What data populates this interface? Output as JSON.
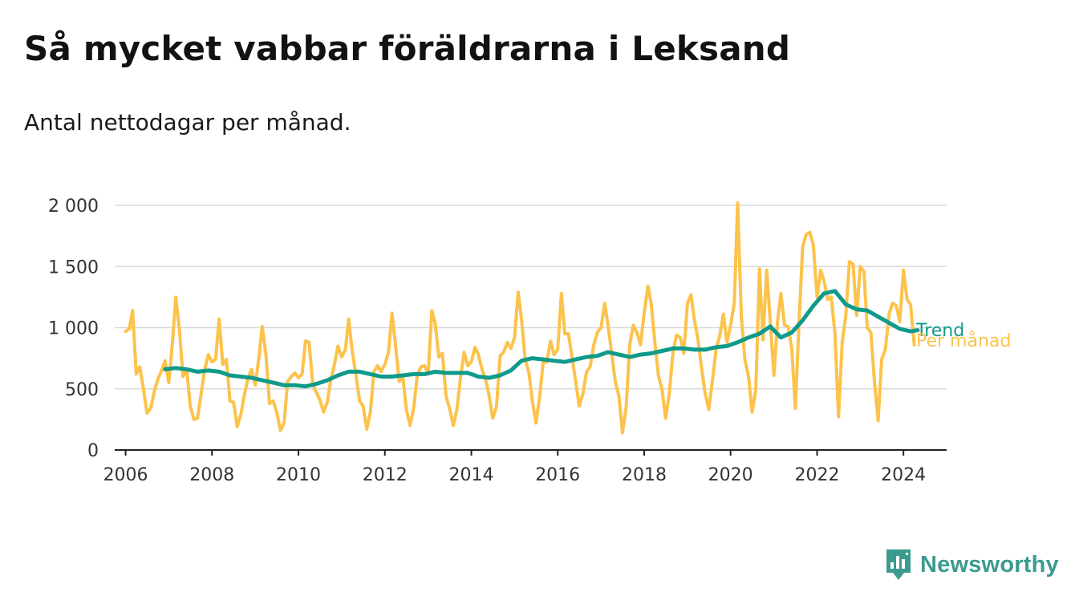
{
  "title": "Så mycket vabbar föräldrarna i Leksand",
  "subtitle": "Antal nettodagar per månad.",
  "brand": {
    "name": "Newsworthy",
    "icon": "newsworthy-logo-icon",
    "color": "#3c9a8f"
  },
  "colors": {
    "monthly": "#fcc34c",
    "trend": "#109a8a",
    "grid": "#d9d9d9",
    "axis": "#222222"
  },
  "chart_data": {
    "type": "line",
    "x_axis": {
      "type": "date",
      "range": [
        "2005-10-01",
        "2024-12-31"
      ],
      "ticks": [
        "2006",
        "2008",
        "2010",
        "2012",
        "2014",
        "2016",
        "2018",
        "2020",
        "2022",
        "2024"
      ]
    },
    "y_axis": {
      "range": [
        0,
        2050
      ],
      "ticks": [
        0,
        500,
        1000,
        1500,
        2000
      ],
      "tick_labels": [
        "0",
        "500",
        "1 000",
        "1 500",
        "2 000"
      ]
    },
    "grid": true,
    "legend": "inline-right",
    "series": [
      {
        "name": "Per månad",
        "color": "#fcc34c",
        "values": [
          [
            "2006-01",
            970
          ],
          [
            "2006-02",
            990
          ],
          [
            "2006-03",
            1140
          ],
          [
            "2006-04",
            620
          ],
          [
            "2006-05",
            680
          ],
          [
            "2006-06",
            500
          ],
          [
            "2006-07",
            300
          ],
          [
            "2006-08",
            340
          ],
          [
            "2006-09",
            480
          ],
          [
            "2006-10",
            580
          ],
          [
            "2006-11",
            650
          ],
          [
            "2006-12",
            730
          ],
          [
            "2007-01",
            550
          ],
          [
            "2007-02",
            880
          ],
          [
            "2007-03",
            1250
          ],
          [
            "2007-04",
            980
          ],
          [
            "2007-05",
            600
          ],
          [
            "2007-06",
            660
          ],
          [
            "2007-07",
            360
          ],
          [
            "2007-08",
            250
          ],
          [
            "2007-09",
            260
          ],
          [
            "2007-10",
            460
          ],
          [
            "2007-11",
            660
          ],
          [
            "2007-12",
            780
          ],
          [
            "2008-01",
            720
          ],
          [
            "2008-02",
            740
          ],
          [
            "2008-03",
            1070
          ],
          [
            "2008-04",
            700
          ],
          [
            "2008-05",
            740
          ],
          [
            "2008-06",
            400
          ],
          [
            "2008-07",
            390
          ],
          [
            "2008-08",
            190
          ],
          [
            "2008-09",
            290
          ],
          [
            "2008-10",
            450
          ],
          [
            "2008-11",
            590
          ],
          [
            "2008-12",
            660
          ],
          [
            "2009-01",
            530
          ],
          [
            "2009-02",
            760
          ],
          [
            "2009-03",
            1010
          ],
          [
            "2009-04",
            780
          ],
          [
            "2009-05",
            380
          ],
          [
            "2009-06",
            400
          ],
          [
            "2009-07",
            310
          ],
          [
            "2009-08",
            160
          ],
          [
            "2009-09",
            220
          ],
          [
            "2009-10",
            560
          ],
          [
            "2009-11",
            600
          ],
          [
            "2009-12",
            630
          ],
          [
            "2010-01",
            590
          ],
          [
            "2010-02",
            620
          ],
          [
            "2010-03",
            890
          ],
          [
            "2010-04",
            880
          ],
          [
            "2010-05",
            540
          ],
          [
            "2010-06",
            470
          ],
          [
            "2010-07",
            410
          ],
          [
            "2010-08",
            310
          ],
          [
            "2010-09",
            390
          ],
          [
            "2010-10",
            570
          ],
          [
            "2010-11",
            700
          ],
          [
            "2010-12",
            850
          ],
          [
            "2011-01",
            760
          ],
          [
            "2011-02",
            820
          ],
          [
            "2011-03",
            1070
          ],
          [
            "2011-04",
            800
          ],
          [
            "2011-05",
            620
          ],
          [
            "2011-06",
            400
          ],
          [
            "2011-07",
            360
          ],
          [
            "2011-08",
            170
          ],
          [
            "2011-09",
            310
          ],
          [
            "2011-10",
            640
          ],
          [
            "2011-11",
            690
          ],
          [
            "2011-12",
            640
          ],
          [
            "2012-01",
            700
          ],
          [
            "2012-02",
            800
          ],
          [
            "2012-03",
            1120
          ],
          [
            "2012-04",
            850
          ],
          [
            "2012-05",
            560
          ],
          [
            "2012-06",
            600
          ],
          [
            "2012-07",
            330
          ],
          [
            "2012-08",
            200
          ],
          [
            "2012-09",
            340
          ],
          [
            "2012-10",
            610
          ],
          [
            "2012-11",
            680
          ],
          [
            "2012-12",
            690
          ],
          [
            "2013-01",
            620
          ],
          [
            "2013-02",
            1140
          ],
          [
            "2013-03",
            1040
          ],
          [
            "2013-04",
            760
          ],
          [
            "2013-05",
            790
          ],
          [
            "2013-06",
            440
          ],
          [
            "2013-07",
            340
          ],
          [
            "2013-08",
            200
          ],
          [
            "2013-09",
            330
          ],
          [
            "2013-10",
            590
          ],
          [
            "2013-11",
            800
          ],
          [
            "2013-12",
            690
          ],
          [
            "2014-01",
            720
          ],
          [
            "2014-02",
            840
          ],
          [
            "2014-03",
            780
          ],
          [
            "2014-04",
            660
          ],
          [
            "2014-05",
            580
          ],
          [
            "2014-06",
            440
          ],
          [
            "2014-07",
            260
          ],
          [
            "2014-08",
            350
          ],
          [
            "2014-09",
            770
          ],
          [
            "2014-10",
            800
          ],
          [
            "2014-11",
            880
          ],
          [
            "2014-12",
            830
          ],
          [
            "2015-01",
            920
          ],
          [
            "2015-02",
            1290
          ],
          [
            "2015-03",
            1070
          ],
          [
            "2015-04",
            740
          ],
          [
            "2015-05",
            640
          ],
          [
            "2015-06",
            400
          ],
          [
            "2015-07",
            220
          ],
          [
            "2015-08",
            430
          ],
          [
            "2015-09",
            720
          ],
          [
            "2015-10",
            720
          ],
          [
            "2015-11",
            890
          ],
          [
            "2015-12",
            780
          ],
          [
            "2016-01",
            820
          ],
          [
            "2016-02",
            1280
          ],
          [
            "2016-03",
            950
          ],
          [
            "2016-04",
            950
          ],
          [
            "2016-05",
            760
          ],
          [
            "2016-06",
            560
          ],
          [
            "2016-07",
            360
          ],
          [
            "2016-08",
            460
          ],
          [
            "2016-09",
            640
          ],
          [
            "2016-10",
            680
          ],
          [
            "2016-11",
            860
          ],
          [
            "2016-12",
            960
          ],
          [
            "2017-01",
            1000
          ],
          [
            "2017-02",
            1200
          ],
          [
            "2017-03",
            1020
          ],
          [
            "2017-04",
            790
          ],
          [
            "2017-05",
            560
          ],
          [
            "2017-06",
            440
          ],
          [
            "2017-07",
            140
          ],
          [
            "2017-08",
            350
          ],
          [
            "2017-09",
            860
          ],
          [
            "2017-10",
            1020
          ],
          [
            "2017-11",
            960
          ],
          [
            "2017-12",
            860
          ],
          [
            "2018-01",
            1120
          ],
          [
            "2018-02",
            1340
          ],
          [
            "2018-03",
            1200
          ],
          [
            "2018-04",
            880
          ],
          [
            "2018-05",
            610
          ],
          [
            "2018-06",
            490
          ],
          [
            "2018-07",
            260
          ],
          [
            "2018-08",
            460
          ],
          [
            "2018-09",
            800
          ],
          [
            "2018-10",
            940
          ],
          [
            "2018-11",
            920
          ],
          [
            "2018-12",
            790
          ],
          [
            "2019-01",
            1200
          ],
          [
            "2019-02",
            1270
          ],
          [
            "2019-03",
            1060
          ],
          [
            "2019-04",
            900
          ],
          [
            "2019-05",
            670
          ],
          [
            "2019-06",
            460
          ],
          [
            "2019-07",
            330
          ],
          [
            "2019-08",
            570
          ],
          [
            "2019-09",
            830
          ],
          [
            "2019-10",
            930
          ],
          [
            "2019-11",
            1110
          ],
          [
            "2019-12",
            880
          ],
          [
            "2020-01",
            1020
          ],
          [
            "2020-02",
            1200
          ],
          [
            "2020-03",
            2020
          ],
          [
            "2020-04",
            1090
          ],
          [
            "2020-05",
            740
          ],
          [
            "2020-06",
            600
          ],
          [
            "2020-07",
            310
          ],
          [
            "2020-08",
            490
          ],
          [
            "2020-09",
            1480
          ],
          [
            "2020-10",
            900
          ],
          [
            "2020-11",
            1470
          ],
          [
            "2020-12",
            1050
          ],
          [
            "2021-01",
            610
          ],
          [
            "2021-02",
            1050
          ],
          [
            "2021-03",
            1280
          ],
          [
            "2021-04",
            1020
          ],
          [
            "2021-05",
            1010
          ],
          [
            "2021-06",
            830
          ],
          [
            "2021-07",
            340
          ],
          [
            "2021-08",
            1030
          ],
          [
            "2021-09",
            1660
          ],
          [
            "2021-10",
            1760
          ],
          [
            "2021-11",
            1780
          ],
          [
            "2021-12",
            1670
          ],
          [
            "2022-01",
            1250
          ],
          [
            "2022-02",
            1470
          ],
          [
            "2022-03",
            1380
          ],
          [
            "2022-04",
            1230
          ],
          [
            "2022-05",
            1250
          ],
          [
            "2022-06",
            950
          ],
          [
            "2022-07",
            270
          ],
          [
            "2022-08",
            880
          ],
          [
            "2022-09",
            1100
          ],
          [
            "2022-10",
            1540
          ],
          [
            "2022-11",
            1520
          ],
          [
            "2022-12",
            1100
          ],
          [
            "2023-01",
            1500
          ],
          [
            "2023-02",
            1460
          ],
          [
            "2023-03",
            1000
          ],
          [
            "2023-04",
            960
          ],
          [
            "2023-05",
            560
          ],
          [
            "2023-06",
            240
          ],
          [
            "2023-07",
            740
          ],
          [
            "2023-08",
            820
          ],
          [
            "2023-09",
            1110
          ],
          [
            "2023-10",
            1200
          ],
          [
            "2023-11",
            1180
          ],
          [
            "2023-12",
            1050
          ],
          [
            "2024-01",
            1470
          ],
          [
            "2024-02",
            1230
          ],
          [
            "2024-03",
            1190
          ],
          [
            "2024-04",
            860
          ]
        ]
      },
      {
        "name": "Trend",
        "color": "#109a8a",
        "values": [
          [
            "2006-12",
            660
          ],
          [
            "2007-03",
            670
          ],
          [
            "2007-06",
            660
          ],
          [
            "2007-09",
            640
          ],
          [
            "2007-12",
            650
          ],
          [
            "2008-03",
            640
          ],
          [
            "2008-06",
            610
          ],
          [
            "2008-09",
            600
          ],
          [
            "2008-12",
            590
          ],
          [
            "2009-03",
            570
          ],
          [
            "2009-06",
            550
          ],
          [
            "2009-09",
            530
          ],
          [
            "2009-12",
            530
          ],
          [
            "2010-03",
            520
          ],
          [
            "2010-06",
            540
          ],
          [
            "2010-09",
            570
          ],
          [
            "2010-12",
            610
          ],
          [
            "2011-03",
            640
          ],
          [
            "2011-06",
            640
          ],
          [
            "2011-09",
            620
          ],
          [
            "2011-12",
            600
          ],
          [
            "2012-03",
            600
          ],
          [
            "2012-06",
            610
          ],
          [
            "2012-09",
            620
          ],
          [
            "2012-12",
            620
          ],
          [
            "2013-03",
            640
          ],
          [
            "2013-06",
            630
          ],
          [
            "2013-09",
            630
          ],
          [
            "2013-12",
            630
          ],
          [
            "2014-03",
            600
          ],
          [
            "2014-06",
            590
          ],
          [
            "2014-09",
            610
          ],
          [
            "2014-12",
            650
          ],
          [
            "2015-03",
            730
          ],
          [
            "2015-06",
            750
          ],
          [
            "2015-09",
            740
          ],
          [
            "2015-12",
            730
          ],
          [
            "2016-03",
            720
          ],
          [
            "2016-06",
            740
          ],
          [
            "2016-09",
            760
          ],
          [
            "2016-12",
            770
          ],
          [
            "2017-03",
            800
          ],
          [
            "2017-06",
            780
          ],
          [
            "2017-09",
            760
          ],
          [
            "2017-12",
            780
          ],
          [
            "2018-03",
            790
          ],
          [
            "2018-06",
            810
          ],
          [
            "2018-09",
            830
          ],
          [
            "2018-12",
            830
          ],
          [
            "2019-03",
            820
          ],
          [
            "2019-06",
            820
          ],
          [
            "2019-09",
            840
          ],
          [
            "2019-12",
            850
          ],
          [
            "2020-03",
            880
          ],
          [
            "2020-06",
            920
          ],
          [
            "2020-09",
            950
          ],
          [
            "2020-12",
            1010
          ],
          [
            "2021-03",
            920
          ],
          [
            "2021-06",
            960
          ],
          [
            "2021-09",
            1060
          ],
          [
            "2021-12",
            1180
          ],
          [
            "2022-03",
            1280
          ],
          [
            "2022-06",
            1300
          ],
          [
            "2022-09",
            1190
          ],
          [
            "2022-12",
            1150
          ],
          [
            "2023-03",
            1140
          ],
          [
            "2023-06",
            1090
          ],
          [
            "2023-09",
            1040
          ],
          [
            "2023-12",
            990
          ],
          [
            "2024-03",
            970
          ],
          [
            "2024-05",
            980
          ]
        ]
      }
    ]
  }
}
